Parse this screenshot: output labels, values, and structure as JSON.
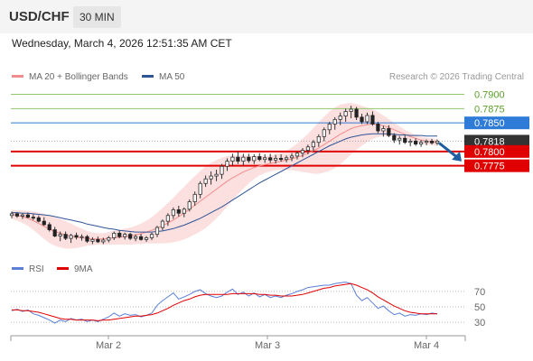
{
  "header": {
    "pair": "USD/CHF",
    "timeframe": "30 MIN"
  },
  "datetime": "Wednesday, March 4, 2026 12:51:35 AM CET",
  "legend": {
    "ma20": {
      "label": "MA 20 + Bollinger Bands",
      "color": "#f28c8c"
    },
    "ma50": {
      "label": "MA 50",
      "color": "#2f5597"
    },
    "rsi": {
      "label": "RSI",
      "color": "#5b7fd6"
    },
    "rsi_ma": {
      "label": "9MA",
      "color": "#e00000"
    }
  },
  "credit": "Research © 2026 Trading Central",
  "chart_data": [
    {
      "type": "candlestick",
      "title": "USD/CHF",
      "timeframe": "30 MIN",
      "x_ticks": [
        "Mar 2",
        "Mar 3",
        "Mar 4"
      ],
      "ylim": [
        0.7615,
        0.7915
      ],
      "levels": [
        {
          "value": 0.79,
          "label": "0.7900",
          "kind": "target",
          "color": "#8fc96b"
        },
        {
          "value": 0.7875,
          "label": "0.7875",
          "kind": "target",
          "color": "#8fc96b"
        },
        {
          "value": 0.785,
          "label": "0.7850",
          "kind": "pivot",
          "color": "#2f7bd8"
        },
        {
          "value": 0.7818,
          "label": "0.7818",
          "kind": "last_price",
          "color": "#333333"
        },
        {
          "value": 0.78,
          "label": "0.7800",
          "kind": "support",
          "color": "#e00000"
        },
        {
          "value": 0.7775,
          "label": "0.7775",
          "kind": "support",
          "color": "#e00000"
        }
      ],
      "direction": "down",
      "candles": [
        [
          0.7688,
          0.7695,
          0.7683,
          0.7691
        ],
        [
          0.7691,
          0.7693,
          0.7684,
          0.7687
        ],
        [
          0.7687,
          0.7692,
          0.7682,
          0.7689
        ],
        [
          0.7689,
          0.7693,
          0.7683,
          0.7685
        ],
        [
          0.7685,
          0.769,
          0.768,
          0.7684
        ],
        [
          0.7684,
          0.7688,
          0.7676,
          0.7678
        ],
        [
          0.7678,
          0.7685,
          0.767,
          0.7672
        ],
        [
          0.7672,
          0.7676,
          0.766,
          0.7663
        ],
        [
          0.7663,
          0.7668,
          0.765,
          0.7652
        ],
        [
          0.7652,
          0.766,
          0.7643,
          0.7655
        ],
        [
          0.7655,
          0.766,
          0.7645,
          0.7648
        ],
        [
          0.7648,
          0.7656,
          0.764,
          0.7653
        ],
        [
          0.7653,
          0.7658,
          0.7646,
          0.765
        ],
        [
          0.765,
          0.7655,
          0.7644,
          0.7651
        ],
        [
          0.7651,
          0.7654,
          0.764,
          0.7643
        ],
        [
          0.7643,
          0.765,
          0.7638,
          0.7646
        ],
        [
          0.7646,
          0.7651,
          0.764,
          0.7642
        ],
        [
          0.7642,
          0.7649,
          0.7638,
          0.7645
        ],
        [
          0.7645,
          0.7652,
          0.7641,
          0.7649
        ],
        [
          0.7649,
          0.766,
          0.7645,
          0.7657
        ],
        [
          0.7657,
          0.7662,
          0.7648,
          0.7651
        ],
        [
          0.7651,
          0.7658,
          0.7646,
          0.7655
        ],
        [
          0.7655,
          0.7658,
          0.7645,
          0.7648
        ],
        [
          0.7648,
          0.7655,
          0.7643,
          0.7651
        ],
        [
          0.7651,
          0.7656,
          0.7644,
          0.7646
        ],
        [
          0.7646,
          0.7652,
          0.7642,
          0.7649
        ],
        [
          0.7649,
          0.7658,
          0.7645,
          0.7655
        ],
        [
          0.7655,
          0.767,
          0.765,
          0.7667
        ],
        [
          0.7667,
          0.7681,
          0.7662,
          0.7678
        ],
        [
          0.7678,
          0.7692,
          0.767,
          0.7688
        ],
        [
          0.7688,
          0.7702,
          0.7682,
          0.7698
        ],
        [
          0.7698,
          0.7705,
          0.7686,
          0.7692
        ],
        [
          0.7692,
          0.7702,
          0.7685,
          0.7699
        ],
        [
          0.7699,
          0.7716,
          0.7695,
          0.7712
        ],
        [
          0.7712,
          0.773,
          0.7705,
          0.7725
        ],
        [
          0.7725,
          0.7748,
          0.7718,
          0.7744
        ],
        [
          0.7744,
          0.7758,
          0.7738,
          0.7752
        ],
        [
          0.7752,
          0.7765,
          0.7742,
          0.7757
        ],
        [
          0.7757,
          0.7768,
          0.7748,
          0.776
        ],
        [
          0.776,
          0.7778,
          0.7752,
          0.7774
        ],
        [
          0.7774,
          0.7788,
          0.7766,
          0.7783
        ],
        [
          0.7783,
          0.7796,
          0.7775,
          0.779
        ],
        [
          0.779,
          0.78,
          0.7778,
          0.7783
        ],
        [
          0.7783,
          0.7796,
          0.7776,
          0.779
        ],
        [
          0.779,
          0.7796,
          0.778,
          0.7784
        ],
        [
          0.7784,
          0.7795,
          0.7778,
          0.7791
        ],
        [
          0.7791,
          0.7797,
          0.7783,
          0.7786
        ],
        [
          0.7786,
          0.7795,
          0.778,
          0.7789
        ],
        [
          0.7789,
          0.7796,
          0.778,
          0.7785
        ],
        [
          0.7785,
          0.7794,
          0.7779,
          0.7788
        ],
        [
          0.7788,
          0.7795,
          0.7782,
          0.7786
        ],
        [
          0.7786,
          0.7793,
          0.7781,
          0.7789
        ],
        [
          0.7789,
          0.7797,
          0.7783,
          0.7792
        ],
        [
          0.7792,
          0.78,
          0.7786,
          0.7797
        ],
        [
          0.7797,
          0.7806,
          0.779,
          0.7802
        ],
        [
          0.7802,
          0.7812,
          0.7795,
          0.7808
        ],
        [
          0.7808,
          0.782,
          0.78,
          0.7816
        ],
        [
          0.7816,
          0.783,
          0.7808,
          0.7826
        ],
        [
          0.7826,
          0.7842,
          0.7818,
          0.7838
        ],
        [
          0.7838,
          0.7852,
          0.783,
          0.7848
        ],
        [
          0.7848,
          0.786,
          0.7838,
          0.7856
        ],
        [
          0.7856,
          0.7868,
          0.7846,
          0.7862
        ],
        [
          0.7862,
          0.7875,
          0.7852,
          0.787
        ],
        [
          0.787,
          0.788,
          0.7858,
          0.7874
        ],
        [
          0.7874,
          0.7878,
          0.7855,
          0.786
        ],
        [
          0.786,
          0.7866,
          0.7848,
          0.7852
        ],
        [
          0.7852,
          0.7868,
          0.7848,
          0.7863
        ],
        [
          0.7863,
          0.787,
          0.7845,
          0.7848
        ],
        [
          0.7848,
          0.7852,
          0.7832,
          0.7836
        ],
        [
          0.7836,
          0.7845,
          0.7826,
          0.784
        ],
        [
          0.784,
          0.7846,
          0.7825,
          0.7828
        ],
        [
          0.7828,
          0.7832,
          0.7815,
          0.782
        ],
        [
          0.782,
          0.7827,
          0.7812,
          0.7823
        ],
        [
          0.7823,
          0.7828,
          0.7813,
          0.7816
        ],
        [
          0.7816,
          0.7822,
          0.7809,
          0.7818
        ],
        [
          0.7818,
          0.7823,
          0.781,
          0.7813
        ],
        [
          0.7813,
          0.782,
          0.7808,
          0.7816
        ],
        [
          0.7816,
          0.7821,
          0.7811,
          0.7818
        ],
        [
          0.7818,
          0.7822,
          0.7812,
          0.7815
        ],
        [
          0.7815,
          0.7821,
          0.7811,
          0.7818
        ]
      ],
      "ma20": [
        0.769,
        0.7688,
        0.7686,
        0.7683,
        0.7679,
        0.7674,
        0.7669,
        0.7664,
        0.766,
        0.7657,
        0.7654,
        0.7652,
        0.765,
        0.7649,
        0.7648,
        0.7647,
        0.7647,
        0.7647,
        0.7648,
        0.7649,
        0.765,
        0.7651,
        0.7652,
        0.7654,
        0.7656,
        0.7659,
        0.7662,
        0.7666,
        0.767,
        0.7675,
        0.768,
        0.7686,
        0.7692,
        0.7699,
        0.7706,
        0.7713,
        0.772,
        0.7727,
        0.7734,
        0.7741,
        0.7748,
        0.7754,
        0.7759,
        0.7764,
        0.7768,
        0.7772,
        0.7775,
        0.7777,
        0.7779,
        0.7781,
        0.7783,
        0.7785,
        0.7787,
        0.779,
        0.7793,
        0.7797,
        0.7801,
        0.7806,
        0.7812,
        0.7818,
        0.7824,
        0.783,
        0.7835,
        0.784,
        0.7843,
        0.7845,
        0.7847,
        0.7848,
        0.7847,
        0.7845,
        0.7842,
        0.7838,
        0.7834,
        0.783,
        0.7826,
        0.7823,
        0.782,
        0.7818,
        0.7817,
        0.7816
      ],
      "bb_width": [
        0.0008,
        0.0009,
        0.0011,
        0.0013,
        0.0016,
        0.0019,
        0.0022,
        0.0024,
        0.0025,
        0.0025,
        0.0024,
        0.0022,
        0.0019,
        0.0016,
        0.0013,
        0.0011,
        0.001,
        0.001,
        0.0011,
        0.0012,
        0.0013,
        0.0014,
        0.0015,
        0.0016,
        0.0018,
        0.002,
        0.0023,
        0.0027,
        0.0031,
        0.0035,
        0.0039,
        0.0043,
        0.0046,
        0.0049,
        0.0051,
        0.0053,
        0.0054,
        0.0053,
        0.0051,
        0.0048,
        0.0044,
        0.0039,
        0.0034,
        0.0029,
        0.0024,
        0.002,
        0.0017,
        0.0015,
        0.0014,
        0.0014,
        0.0015,
        0.0017,
        0.002,
        0.0024,
        0.0029,
        0.0034,
        0.004,
        0.0045,
        0.0049,
        0.0052,
        0.0053,
        0.0052,
        0.0049,
        0.0045,
        0.004,
        0.0035,
        0.003,
        0.0026,
        0.0022,
        0.0018,
        0.0015,
        0.0012,
        0.001,
        0.0008,
        0.0007,
        0.0006,
        0.0006,
        0.0006,
        0.0006,
        0.0006
      ],
      "ma50": [
        0.7693,
        0.7693,
        0.7692,
        0.7692,
        0.7691,
        0.769,
        0.7689,
        0.7688,
        0.7686,
        0.7684,
        0.7682,
        0.768,
        0.7678,
        0.7676,
        0.7673,
        0.7671,
        0.7669,
        0.7667,
        0.7665,
        0.7664,
        0.7662,
        0.7661,
        0.766,
        0.7659,
        0.7659,
        0.7659,
        0.7659,
        0.766,
        0.7661,
        0.7663,
        0.7665,
        0.7668,
        0.7671,
        0.7675,
        0.7679,
        0.7683,
        0.7688,
        0.7693,
        0.7698,
        0.7703,
        0.7709,
        0.7715,
        0.7721,
        0.7727,
        0.7733,
        0.7739,
        0.7745,
        0.775,
        0.7755,
        0.776,
        0.7765,
        0.777,
        0.7775,
        0.778,
        0.7785,
        0.779,
        0.7795,
        0.78,
        0.7805,
        0.781,
        0.7814,
        0.7818,
        0.7822,
        0.7825,
        0.7827,
        0.7829,
        0.783,
        0.7831,
        0.7831,
        0.7831,
        0.7831,
        0.783,
        0.7829,
        0.7829,
        0.7828,
        0.7828,
        0.7828,
        0.7827,
        0.7827,
        0.7827
      ]
    },
    {
      "type": "line",
      "title": "RSI",
      "ylim": [
        15,
        85
      ],
      "y_ticks": [
        70,
        50,
        30
      ],
      "series": [
        {
          "name": "RSI",
          "color": "#5b7fd6",
          "values": [
            45,
            47,
            44,
            46,
            41,
            39,
            36,
            33,
            29,
            33,
            31,
            35,
            33,
            34,
            31,
            33,
            31,
            34,
            37,
            42,
            38,
            41,
            39,
            40,
            37,
            39,
            42,
            52,
            58,
            63,
            68,
            60,
            63,
            66,
            70,
            72,
            67,
            64,
            62,
            64,
            69,
            73,
            66,
            69,
            64,
            68,
            63,
            66,
            62,
            64,
            62,
            65,
            67,
            70,
            72,
            75,
            76,
            77,
            78,
            78,
            80,
            81,
            82,
            80,
            65,
            58,
            62,
            55,
            48,
            51,
            45,
            40,
            42,
            38,
            40,
            39,
            41,
            40,
            42,
            41
          ]
        },
        {
          "name": "9MA",
          "color": "#e00000",
          "values": [
            46,
            46,
            45,
            45,
            44,
            43,
            41,
            39,
            37,
            35,
            34,
            34,
            33,
            33,
            33,
            33,
            32,
            33,
            33,
            34,
            35,
            36,
            37,
            38,
            38,
            39,
            40,
            42,
            45,
            48,
            52,
            55,
            58,
            60,
            63,
            65,
            66,
            66,
            66,
            66,
            66,
            67,
            67,
            67,
            67,
            67,
            66,
            66,
            65,
            65,
            64,
            64,
            64,
            65,
            66,
            68,
            70,
            72,
            74,
            75,
            77,
            78,
            79,
            80,
            78,
            75,
            72,
            68,
            63,
            59,
            55,
            51,
            48,
            45,
            43,
            42,
            41,
            41,
            41,
            41
          ]
        }
      ]
    }
  ]
}
